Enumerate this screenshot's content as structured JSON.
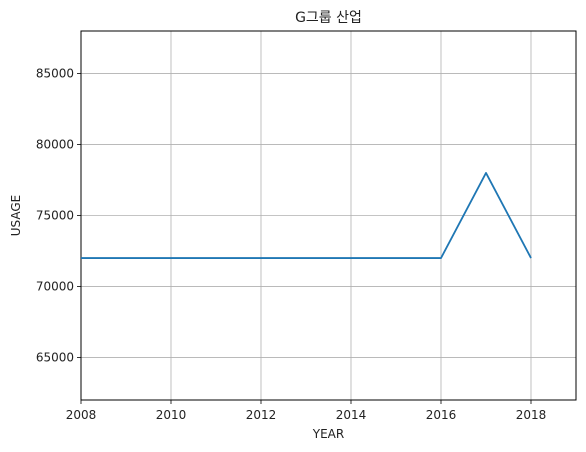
{
  "chart_data": {
    "type": "line",
    "title": "G그룹 산업",
    "xlabel": "YEAR",
    "ylabel": "USAGE",
    "xlim": [
      2008,
      2019
    ],
    "ylim": [
      62000,
      88000
    ],
    "x_ticks": [
      2008,
      2010,
      2012,
      2014,
      2016,
      2018
    ],
    "y_ticks": [
      65000,
      70000,
      75000,
      80000,
      85000
    ],
    "grid": true,
    "series": [
      {
        "x": [
          2008,
          2009,
          2010,
          2011,
          2012,
          2013,
          2014,
          2015,
          2016,
          2017,
          2018
        ],
        "values": [
          72000,
          72000,
          72000,
          72000,
          72000,
          72000,
          72000,
          72000,
          72000,
          78000,
          72000
        ],
        "color": "#1f77b4"
      }
    ]
  }
}
